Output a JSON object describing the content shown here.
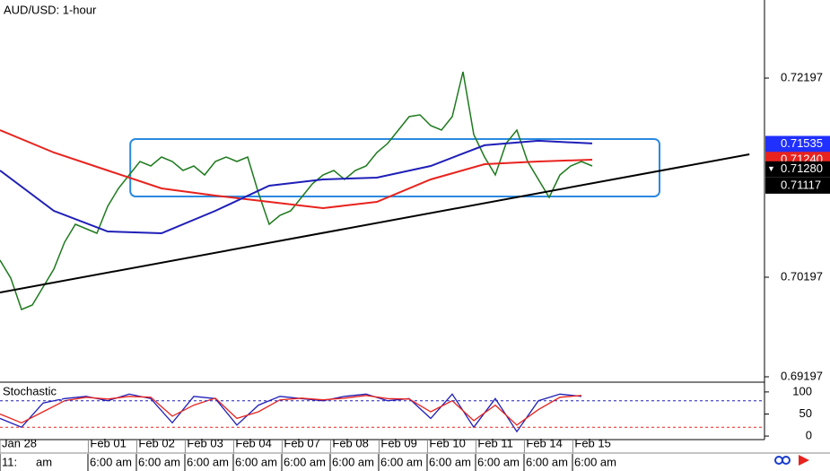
{
  "chart_data": {
    "type": "line",
    "title": "AUD/USD: 1-hour",
    "xlim": [
      0,
      71
    ],
    "ylim": [
      0.69152,
      0.72981
    ],
    "yticks": [
      0.72197,
      0.70197,
      0.69197
    ],
    "x": [
      0,
      1,
      2,
      3,
      4,
      5,
      6,
      7,
      8,
      9,
      10,
      11,
      12,
      13,
      14,
      15,
      16,
      17,
      18,
      19,
      20,
      21,
      22,
      23,
      24,
      25,
      26,
      27,
      28,
      29,
      30,
      31,
      32,
      33,
      34,
      35,
      36,
      37,
      38,
      39,
      40,
      41,
      42,
      43,
      44,
      45,
      46,
      47,
      48,
      49,
      50,
      51,
      52,
      53,
      54,
      55
    ],
    "series": [
      {
        "color": "#1d7a1d",
        "values": [
          0.70368,
          0.70188,
          0.69873,
          0.69918,
          0.70098,
          0.70278,
          0.70549,
          0.70729,
          0.70684,
          0.70639,
          0.70909,
          0.71089,
          0.71224,
          0.71359,
          0.71314,
          0.71404,
          0.71359,
          0.71269,
          0.71314,
          0.71224,
          0.71359,
          0.71404,
          0.71359,
          0.71404,
          0.71044,
          0.70729,
          0.70819,
          0.70864,
          0.70999,
          0.71134,
          0.71224,
          0.71269,
          0.71179,
          0.71269,
          0.71314,
          0.71449,
          0.7154,
          0.71675,
          0.7181,
          0.71828,
          0.7172,
          0.71675,
          0.7181,
          0.7226,
          0.7163,
          0.71404,
          0.71224,
          0.7154,
          0.71675,
          0.71359,
          0.71179,
          0.70999,
          0.71224,
          0.71314,
          0.71359,
          0.71314
        ]
      },
      {
        "color": "#e8231e",
        "x": [
          0,
          5,
          10,
          15,
          20,
          25,
          30,
          35,
          40,
          45,
          50,
          55
        ],
        "values": [
          0.71675,
          0.71449,
          0.71269,
          0.71089,
          0.71017,
          0.70954,
          0.70891,
          0.70954,
          0.71179,
          0.71332,
          0.71359,
          0.71377
        ]
      },
      {
        "color": "#1f1fb8",
        "x": [
          0,
          5,
          10,
          15,
          20,
          25,
          30,
          35,
          40,
          45,
          50,
          55
        ],
        "values": [
          0.71269,
          0.70864,
          0.70657,
          0.70639,
          0.70864,
          0.71116,
          0.71179,
          0.71197,
          0.71314,
          0.71522,
          0.71567,
          0.7154
        ]
      }
    ],
    "trendline": {
      "color": "#000000",
      "x": [
        0,
        69.6
      ],
      "values": [
        0.70044,
        0.71431
      ]
    },
    "range_box": {
      "color": "#2a8ae0",
      "x": [
        12.1,
        61.25
      ],
      "values": [
        0.71585,
        0.71008
      ]
    },
    "price_labels": [
      {
        "value": 0.71535,
        "label": "0.71535",
        "color": "#2030ff"
      },
      {
        "value": 0.7124,
        "label": "0.71240",
        "color": "#e8231e"
      },
      {
        "value": 0.7128,
        "label": "0.71280",
        "color": "#000000",
        "arrow": "▼"
      },
      {
        "value": 0.71117,
        "color": "#000000"
      }
    ],
    "xticks": [
      {
        "value": 0,
        "label": "Jan 28"
      },
      {
        "value": 8.2,
        "label": "Feb 01"
      },
      {
        "value": 12.7,
        "label": "Feb 02"
      },
      {
        "value": 17.2,
        "label": "Feb 03"
      },
      {
        "value": 21.7,
        "label": "Feb 04"
      },
      {
        "value": 26.2,
        "label": "Feb 07"
      },
      {
        "value": 30.7,
        "label": "Feb 08"
      },
      {
        "value": 35.2,
        "label": "Feb 09"
      },
      {
        "value": 39.7,
        "label": "Feb 10"
      },
      {
        "value": 44.2,
        "label": "Feb 11"
      },
      {
        "value": 48.7,
        "label": "Feb 14"
      },
      {
        "value": 53.2,
        "label": "Feb 15"
      }
    ],
    "time_labels": [
      "11:",
      "am",
      "6:00 am",
      "6:00 am",
      "6:00 am",
      "6:00 am",
      "6:00 am",
      "6:00 am",
      "6:00 am",
      "6:00 am",
      "6:00 am",
      "6:00 am",
      "6:00 am"
    ],
    "stochastic": {
      "title": "Stochastic",
      "ylim": [
        -8,
        114
      ],
      "yticks": [
        100,
        50,
        0
      ],
      "levels": [
        80,
        20
      ],
      "x": [
        0,
        2,
        4,
        6,
        8,
        10,
        12,
        14,
        16,
        18,
        20,
        22,
        24,
        26,
        28,
        30,
        32,
        34,
        36,
        38,
        40,
        42,
        44,
        46,
        48,
        50,
        52,
        54
      ],
      "series": [
        {
          "color": "#1f1fb8",
          "values": [
            40,
            20,
            75,
            85,
            90,
            80,
            95,
            85,
            30,
            90,
            85,
            25,
            70,
            90,
            85,
            80,
            90,
            95,
            80,
            85,
            40,
            95,
            20,
            85,
            10,
            80,
            95,
            90
          ]
        },
        {
          "color": "#e8231e",
          "values": [
            50,
            30,
            55,
            80,
            88,
            84,
            90,
            88,
            45,
            70,
            86,
            40,
            55,
            82,
            86,
            82,
            86,
            92,
            85,
            84,
            55,
            80,
            35,
            70,
            25,
            60,
            88,
            92
          ]
        }
      ]
    }
  }
}
